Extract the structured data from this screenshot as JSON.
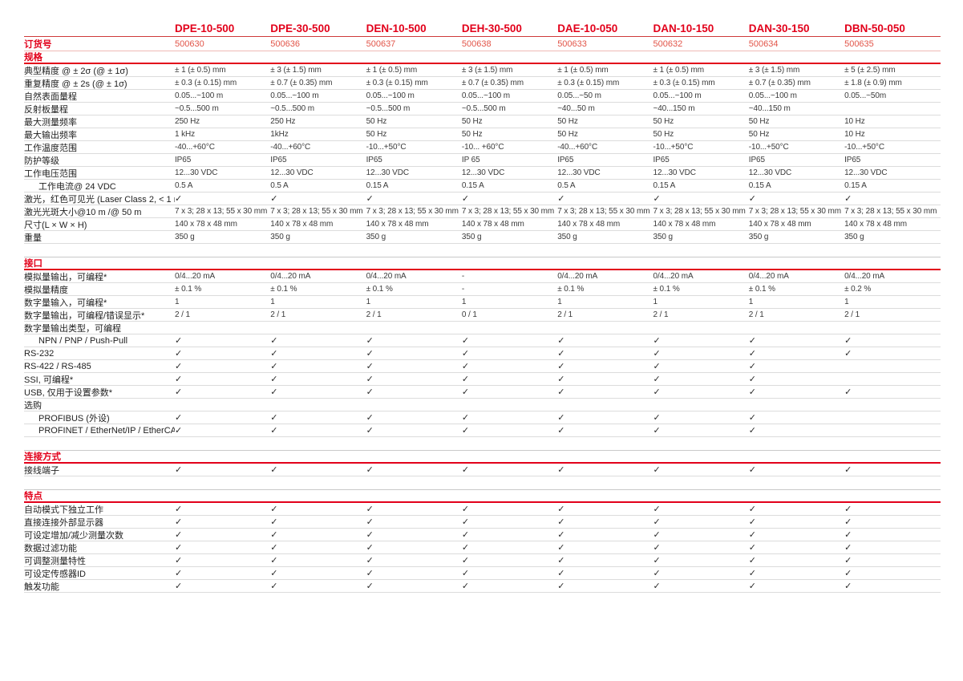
{
  "colors": {
    "brand_red": "#e2001a",
    "order_number_red": "#e25549",
    "body_text": "#3a3a3a",
    "row_separator": "#dcdcdc"
  },
  "check_symbol": "✓",
  "columns": [
    "DPE-10-500",
    "DPE-30-500",
    "DEN-10-500",
    "DEH-30-500",
    "DAE-10-050",
    "DAN-10-150",
    "DAN-30-150",
    "DBN-50-050"
  ],
  "order": {
    "label": "订货号",
    "values": [
      "500630",
      "500636",
      "500637",
      "500638",
      "500633",
      "500632",
      "500634",
      "500635"
    ]
  },
  "sections": [
    {
      "title": "规格",
      "rows": [
        {
          "label": "典型精度 @ ± 2σ (@ ± 1σ)",
          "indent": false,
          "values": [
            "± 1 (± 0.5) mm",
            "± 3 (± 1.5) mm",
            "± 1 (± 0.5) mm",
            "± 3 (± 1.5) mm",
            "± 1 (± 0.5) mm",
            "± 1 (± 0.5) mm",
            "± 3 (± 1.5) mm",
            "± 5 (± 2.5) mm"
          ]
        },
        {
          "label": "重复精度 @ ± 2s (@ ± 1σ)",
          "indent": false,
          "values": [
            "± 0.3 (± 0.15) mm",
            "± 0.7 (± 0.35) mm",
            "± 0.3 (± 0.15) mm",
            "± 0.7 (± 0.35) mm",
            "± 0.3 (± 0.15) mm",
            "± 0.3 (± 0.15) mm",
            "± 0.7 (± 0.35) mm",
            "± 1.8 (± 0.9) mm"
          ]
        },
        {
          "label": "自然表面量程",
          "indent": false,
          "values": [
            "0.05...~100 m",
            "0.05...~100 m",
            "0.05...~100 m",
            "0.05...~100 m",
            "0.05...~50 m",
            "0.05...~100 m",
            "0.05...~100 m",
            "0.05...~50m"
          ]
        },
        {
          "label": "反射板量程",
          "indent": false,
          "values": [
            "~0.5...500 m",
            "~0.5...500 m",
            "~0.5...500 m",
            "~0.5...500 m",
            "~40...50 m",
            "~40...150 m",
            "~40...150 m",
            ""
          ]
        },
        {
          "label": "最大测量频率",
          "indent": false,
          "values": [
            "250 Hz",
            "250 Hz",
            "50 Hz",
            "50 Hz",
            "50 Hz",
            "50 Hz",
            "50 Hz",
            "10 Hz"
          ]
        },
        {
          "label": "最大输出频率",
          "indent": false,
          "values": [
            "1 kHz",
            "1kHz",
            "50 Hz",
            "50 Hz",
            "50 Hz",
            "50 Hz",
            "50 Hz",
            "10 Hz"
          ]
        },
        {
          "label": "工作温度范围",
          "indent": false,
          "values": [
            "-40...+60°C",
            "-40...+60°C",
            "-10...+50°C",
            "-10... +60°C",
            "-40...+60°C",
            "-10...+50°C",
            "-10...+50°C",
            "-10...+50°C"
          ]
        },
        {
          "label": "防护等级",
          "indent": false,
          "values": [
            "IP65",
            "IP65",
            "IP65",
            "IP 65",
            "IP65",
            "IP65",
            "IP65",
            "IP65"
          ]
        },
        {
          "label": "工作电压范围",
          "indent": false,
          "values": [
            "12...30 VDC",
            "12...30 VDC",
            "12...30 VDC",
            "12...30 VDC",
            "12...30 VDC",
            "12...30 VDC",
            "12...30 VDC",
            "12...30 VDC"
          ]
        },
        {
          "label": "工作电流@ 24 VDC",
          "indent": true,
          "values": [
            "0.5 A",
            "0.5 A",
            "0.15 A",
            "0.15 A",
            "0.5 A",
            "0.15 A",
            "0.15 A",
            "0.15 A"
          ]
        },
        {
          "label": "激光，红色可见光 (Laser Class 2, < 1 mW)",
          "indent": false,
          "values": [
            "✓",
            "✓",
            "✓",
            "✓",
            "✓",
            "✓",
            "✓",
            "✓"
          ]
        },
        {
          "label": "激光光斑大小@10 m /@ 50 m",
          "indent": false,
          "values": [
            "7 x 3; 28 x 13; 55 x 30 mm",
            "7 x 3; 28 x 13; 55 x 30 mm",
            "7 x 3; 28 x 13; 55 x 30 mm",
            "7 x 3; 28 x 13; 55 x 30 mm",
            "7 x 3; 28 x 13; 55 x 30 mm",
            "7 x 3; 28 x 13; 55 x 30 mm",
            "7 x 3; 28 x 13; 55 x 30 mm",
            "7 x 3; 28 x 13; 55 x 30 mm"
          ]
        },
        {
          "label": "尺寸(L × W × H)",
          "indent": false,
          "values": [
            "140 x 78 x 48 mm",
            "140 x 78 x 48 mm",
            "140 x 78 x 48 mm",
            "140 x 78 x 48 mm",
            "140 x 78 x 48 mm",
            "140 x 78 x 48 mm",
            "140 x 78 x 48 mm",
            "140 x 78 x 48 mm"
          ]
        },
        {
          "label": "重量",
          "indent": false,
          "values": [
            "350 g",
            "350 g",
            "350 g",
            "350 g",
            "350 g",
            "350 g",
            "350 g",
            "350 g"
          ]
        }
      ]
    },
    {
      "title": "接口",
      "rows": [
        {
          "label": "模拟量输出，可编程*",
          "indent": false,
          "values": [
            "0/4...20 mA",
            "0/4...20 mA",
            "0/4...20 mA",
            "-",
            "0/4...20 mA",
            "0/4...20 mA",
            "0/4...20 mA",
            "0/4...20 mA"
          ]
        },
        {
          "label": "模拟量精度",
          "indent": false,
          "values": [
            "± 0.1 %",
            "± 0.1 %",
            "± 0.1 %",
            "-",
            "± 0.1 %",
            "± 0.1 %",
            "± 0.1 %",
            "± 0.2 %"
          ]
        },
        {
          "label": "数字量输入，可编程*",
          "indent": false,
          "values": [
            "1",
            "1",
            "1",
            "1",
            "1",
            "1",
            "1",
            "1"
          ]
        },
        {
          "label": "数字量输出，可编程/错误显示*",
          "indent": false,
          "values": [
            "2 / 1",
            "2 / 1",
            "2 / 1",
            "0 / 1",
            "2 / 1",
            "2 / 1",
            "2 / 1",
            "2 / 1"
          ]
        },
        {
          "label": "数字量输出类型，可编程",
          "indent": false,
          "values": [
            "",
            "",
            "",
            "",
            "",
            "",
            "",
            ""
          ]
        },
        {
          "label": "NPN / PNP / Push-Pull",
          "indent": true,
          "values": [
            "✓",
            "✓",
            "✓",
            "✓",
            "✓",
            "✓",
            "✓",
            "✓"
          ]
        },
        {
          "label": "RS-232",
          "indent": false,
          "values": [
            "✓",
            "✓",
            "✓",
            "✓",
            "✓",
            "✓",
            "✓",
            "✓"
          ]
        },
        {
          "label": "RS-422 / RS-485",
          "indent": false,
          "values": [
            "✓",
            "✓",
            "✓",
            "✓",
            "✓",
            "✓",
            "✓",
            ""
          ]
        },
        {
          "label": "SSI, 可编程*",
          "indent": false,
          "values": [
            "✓",
            "✓",
            "✓",
            "✓",
            "✓",
            "✓",
            "✓",
            ""
          ]
        },
        {
          "label": "USB, 仅用于设置参数*",
          "indent": false,
          "values": [
            "✓",
            "✓",
            "✓",
            "✓",
            "✓",
            "✓",
            "✓",
            "✓"
          ]
        },
        {
          "label": "选购",
          "indent": false,
          "values": [
            "",
            "",
            "",
            "",
            "",
            "",
            "",
            ""
          ]
        },
        {
          "label": "PROFIBUS (外设)",
          "indent": true,
          "values": [
            "✓",
            "✓",
            "✓",
            "✓",
            "✓",
            "✓",
            "✓",
            ""
          ]
        },
        {
          "label": "PROFINET / EtherNet/IP / EtherCAT",
          "indent": true,
          "values": [
            "✓",
            "✓",
            "✓",
            "✓",
            "✓",
            "✓",
            "✓",
            ""
          ]
        }
      ]
    },
    {
      "title": "连接方式",
      "rows": [
        {
          "label": "接线端子",
          "indent": false,
          "values": [
            "✓",
            "✓",
            "✓",
            "✓",
            "✓",
            "✓",
            "✓",
            "✓"
          ]
        }
      ]
    },
    {
      "title": "特点",
      "rows": [
        {
          "label": "自动模式下独立工作",
          "indent": false,
          "values": [
            "✓",
            "✓",
            "✓",
            "✓",
            "✓",
            "✓",
            "✓",
            "✓"
          ]
        },
        {
          "label": "直接连接外部显示器",
          "indent": false,
          "values": [
            "✓",
            "✓",
            "✓",
            "✓",
            "✓",
            "✓",
            "✓",
            "✓"
          ]
        },
        {
          "label": "可设定增加/减少测量次数",
          "indent": false,
          "values": [
            "✓",
            "✓",
            "✓",
            "✓",
            "✓",
            "✓",
            "✓",
            "✓"
          ]
        },
        {
          "label": "数据过滤功能",
          "indent": false,
          "values": [
            "✓",
            "✓",
            "✓",
            "✓",
            "✓",
            "✓",
            "✓",
            "✓"
          ]
        },
        {
          "label": "可调整测量特性",
          "indent": false,
          "values": [
            "✓",
            "✓",
            "✓",
            "✓",
            "✓",
            "✓",
            "✓",
            "✓"
          ]
        },
        {
          "label": "可设定传感器ID",
          "indent": false,
          "values": [
            "✓",
            "✓",
            "✓",
            "✓",
            "✓",
            "✓",
            "✓",
            "✓"
          ]
        },
        {
          "label": "触发功能",
          "indent": false,
          "values": [
            "✓",
            "✓",
            "✓",
            "✓",
            "✓",
            "✓",
            "✓",
            "✓"
          ]
        }
      ]
    }
  ]
}
